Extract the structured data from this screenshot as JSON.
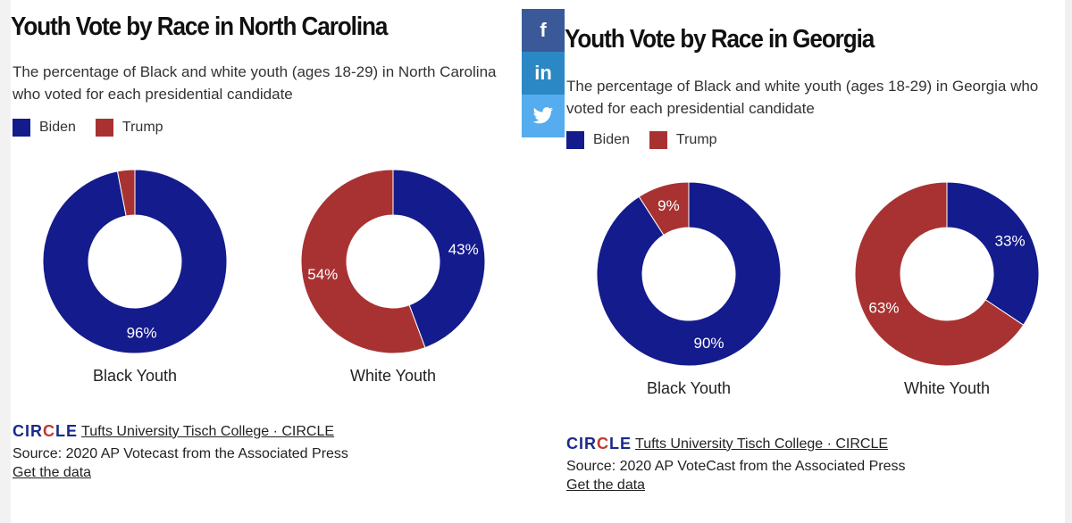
{
  "share": {
    "facebook_icon": "f",
    "linkedin_icon": "in",
    "twitter_icon": "twitter-bird-icon"
  },
  "chart_data": [
    {
      "type": "pie",
      "title": "Youth Vote by Race in North Carolina",
      "subtitle": "The percentage of Black and white youth (ages 18-29) in North Carolina who voted for each presidential candidate",
      "legend": [
        {
          "name": "Biden",
          "color": "#141b8c"
        },
        {
          "name": "Trump",
          "color": "#a83232"
        }
      ],
      "legend_position": "top-left",
      "donuts": [
        {
          "label": "Black Youth",
          "slices": [
            {
              "name": "Biden",
              "value": 96,
              "label": "96%",
              "color": "#141b8c"
            },
            {
              "name": "Trump",
              "value": 3,
              "label": "",
              "color": "#a83232"
            }
          ]
        },
        {
          "label": "White Youth",
          "slices": [
            {
              "name": "Biden",
              "value": 43,
              "label": "43%",
              "color": "#141b8c"
            },
            {
              "name": "Trump",
              "value": 54,
              "label": "54%",
              "color": "#a83232"
            }
          ]
        }
      ],
      "footer": {
        "logo": "CIRCLE",
        "org_link": "Tufts University Tisch College · CIRCLE",
        "source": "Source: 2020 AP Votecast from the Associated Press",
        "get_data": "Get the data"
      }
    },
    {
      "type": "pie",
      "title": "Youth Vote by Race in Georgia",
      "subtitle": "The percentage of Black and white youth (ages 18-29) in Georgia who voted for each presidential candidate",
      "legend": [
        {
          "name": "Biden",
          "color": "#141b8c"
        },
        {
          "name": "Trump",
          "color": "#a83232"
        }
      ],
      "legend_position": "top-left",
      "donuts": [
        {
          "label": "Black Youth",
          "slices": [
            {
              "name": "Biden",
              "value": 90,
              "label": "90%",
              "color": "#141b8c"
            },
            {
              "name": "Trump",
              "value": 9,
              "label": "9%",
              "color": "#a83232"
            }
          ]
        },
        {
          "label": "White Youth",
          "slices": [
            {
              "name": "Biden",
              "value": 33,
              "label": "33%",
              "color": "#141b8c"
            },
            {
              "name": "Trump",
              "value": 63,
              "label": "63%",
              "color": "#a83232"
            }
          ]
        }
      ],
      "footer": {
        "logo": "CIRCLE",
        "org_link": "Tufts University Tisch College · CIRCLE",
        "source": "Source: 2020 AP VoteCast from the Associated Press",
        "get_data": "Get the data"
      }
    }
  ]
}
